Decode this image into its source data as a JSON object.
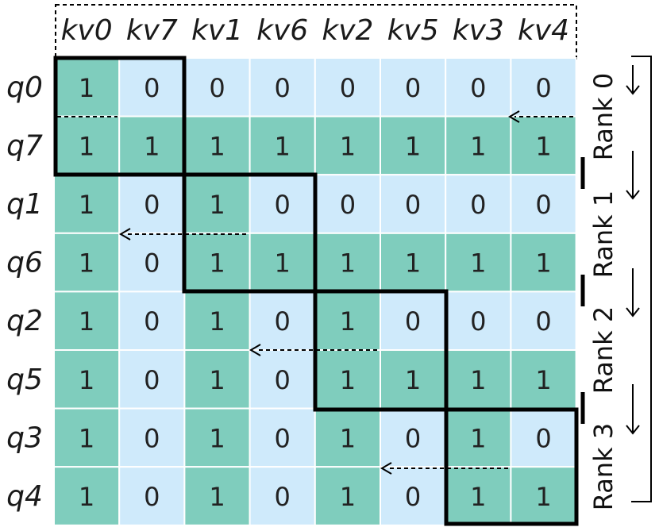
{
  "columns": [
    "kv0",
    "kv7",
    "kv1",
    "kv6",
    "kv2",
    "kv5",
    "kv3",
    "kv4"
  ],
  "rows": [
    "q0",
    "q7",
    "q1",
    "q6",
    "q2",
    "q5",
    "q3",
    "q4"
  ],
  "matrix": [
    [
      1,
      0,
      0,
      0,
      0,
      0,
      0,
      0
    ],
    [
      1,
      1,
      1,
      1,
      1,
      1,
      1,
      1
    ],
    [
      1,
      0,
      1,
      0,
      0,
      0,
      0,
      0
    ],
    [
      1,
      0,
      1,
      1,
      1,
      1,
      1,
      1
    ],
    [
      1,
      0,
      1,
      0,
      1,
      0,
      0,
      0
    ],
    [
      1,
      0,
      1,
      0,
      1,
      1,
      1,
      1
    ],
    [
      1,
      0,
      1,
      0,
      1,
      0,
      1,
      0
    ],
    [
      1,
      0,
      1,
      0,
      1,
      0,
      1,
      1
    ]
  ],
  "ranks": [
    "Rank 0",
    "Rank 1",
    "Rank 2",
    "Rank 3"
  ],
  "colors": {
    "one": "#7fcdbd",
    "zero": "#cfeafb",
    "line": "#000000"
  }
}
